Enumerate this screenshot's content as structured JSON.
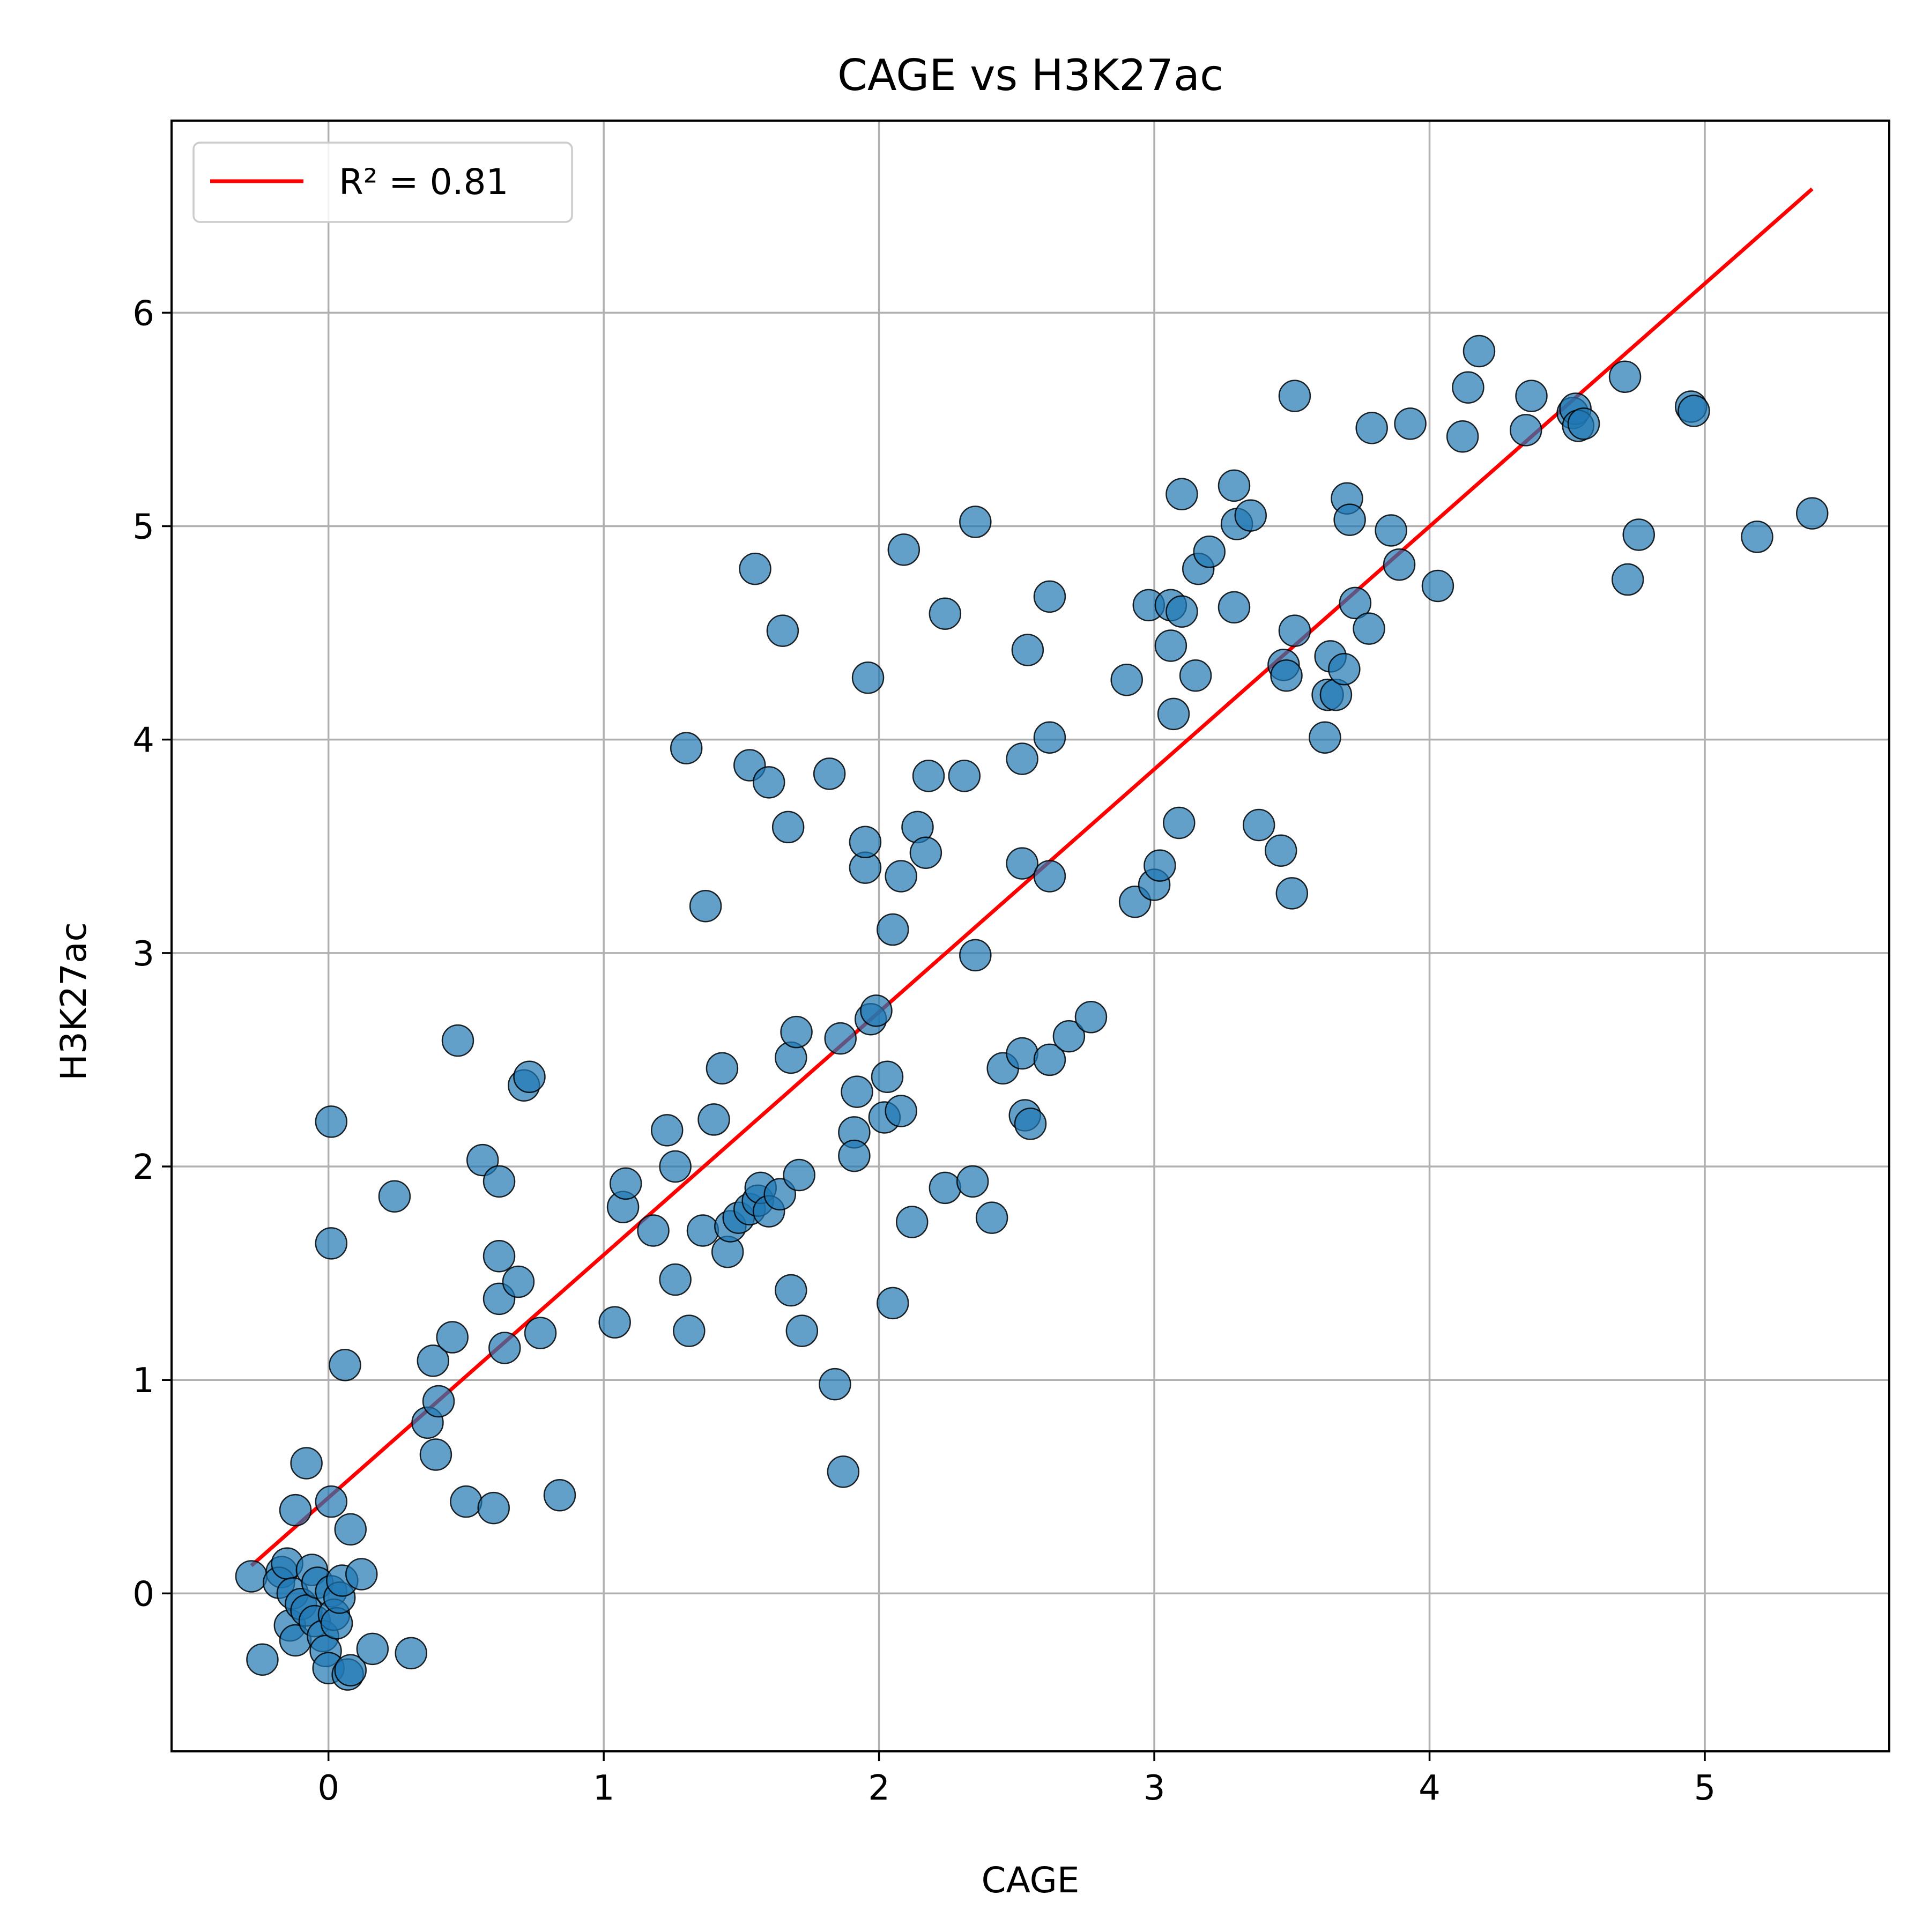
{
  "chart_data": {
    "type": "scatter",
    "title": "CAGE vs H3K27ac",
    "xlabel": "CAGE",
    "ylabel": "H3K27ac",
    "xlim": [
      -0.57,
      5.67
    ],
    "ylim": [
      -0.74,
      6.9
    ],
    "xticks": [
      0,
      1,
      2,
      3,
      4,
      5
    ],
    "yticks": [
      0,
      1,
      2,
      3,
      4,
      5,
      6
    ],
    "grid": true,
    "legend": {
      "placement": "top-left",
      "entries": [
        {
          "label": "R² = 0.81",
          "color": "#ff0000",
          "kind": "line"
        }
      ]
    },
    "fit_line": {
      "x": [
        -0.28,
        5.39
      ],
      "y": [
        0.13,
        6.58
      ],
      "color": "#ff0000"
    },
    "point_color": "#1f77b4",
    "point_edge_color": "#000000",
    "points": [
      [
        -0.28,
        0.08
      ],
      [
        -0.24,
        -0.31
      ],
      [
        -0.17,
        0.1
      ],
      [
        -0.18,
        0.05
      ],
      [
        -0.15,
        0.14
      ],
      [
        -0.14,
        -0.15
      ],
      [
        -0.13,
        0.0
      ],
      [
        -0.12,
        -0.22
      ],
      [
        -0.1,
        -0.05
      ],
      [
        -0.08,
        -0.08
      ],
      [
        -0.06,
        0.11
      ],
      [
        -0.05,
        -0.13
      ],
      [
        -0.04,
        0.05
      ],
      [
        -0.02,
        -0.2
      ],
      [
        -0.01,
        -0.27
      ],
      [
        0.0,
        -0.35
      ],
      [
        0.01,
        0.01
      ],
      [
        0.02,
        -0.1
      ],
      [
        0.03,
        -0.14
      ],
      [
        0.04,
        -0.02
      ],
      [
        0.05,
        0.06
      ],
      [
        0.07,
        -0.38
      ],
      [
        0.08,
        -0.36
      ],
      [
        0.12,
        0.09
      ],
      [
        0.16,
        -0.26
      ],
      [
        0.3,
        -0.28
      ],
      [
        -0.12,
        0.39
      ],
      [
        -0.08,
        0.61
      ],
      [
        0.01,
        0.43
      ],
      [
        0.08,
        0.3
      ],
      [
        0.06,
        1.07
      ],
      [
        0.01,
        1.64
      ],
      [
        0.01,
        2.21
      ],
      [
        0.24,
        1.86
      ],
      [
        0.36,
        0.8
      ],
      [
        0.38,
        1.09
      ],
      [
        0.4,
        0.9
      ],
      [
        0.39,
        0.65
      ],
      [
        0.45,
        1.2
      ],
      [
        0.47,
        2.59
      ],
      [
        0.5,
        0.43
      ],
      [
        0.56,
        2.03
      ],
      [
        0.6,
        0.4
      ],
      [
        0.62,
        1.93
      ],
      [
        0.62,
        1.38
      ],
      [
        0.62,
        1.58
      ],
      [
        0.64,
        1.15
      ],
      [
        0.69,
        1.46
      ],
      [
        0.71,
        2.38
      ],
      [
        0.73,
        2.42
      ],
      [
        0.77,
        1.22
      ],
      [
        0.84,
        0.46
      ],
      [
        1.04,
        1.27
      ],
      [
        1.07,
        1.81
      ],
      [
        1.08,
        1.92
      ],
      [
        1.18,
        1.7
      ],
      [
        1.23,
        2.17
      ],
      [
        1.26,
        2.0
      ],
      [
        1.26,
        1.47
      ],
      [
        1.3,
        3.96
      ],
      [
        1.31,
        1.23
      ],
      [
        1.36,
        1.7
      ],
      [
        1.37,
        3.22
      ],
      [
        1.4,
        2.22
      ],
      [
        1.43,
        2.46
      ],
      [
        1.45,
        1.6
      ],
      [
        1.46,
        1.72
      ],
      [
        1.49,
        1.76
      ],
      [
        1.53,
        1.8
      ],
      [
        1.53,
        3.88
      ],
      [
        1.55,
        4.8
      ],
      [
        1.56,
        1.84
      ],
      [
        1.57,
        1.9
      ],
      [
        1.6,
        1.79
      ],
      [
        1.6,
        3.8
      ],
      [
        1.64,
        1.87
      ],
      [
        1.65,
        4.51
      ],
      [
        1.67,
        3.59
      ],
      [
        1.68,
        2.51
      ],
      [
        1.68,
        1.42
      ],
      [
        1.7,
        2.63
      ],
      [
        1.71,
        1.96
      ],
      [
        1.72,
        1.23
      ],
      [
        1.82,
        3.84
      ],
      [
        1.84,
        0.98
      ],
      [
        1.86,
        2.6
      ],
      [
        1.87,
        0.57
      ],
      [
        1.91,
        2.16
      ],
      [
        1.91,
        2.05
      ],
      [
        1.92,
        2.35
      ],
      [
        1.95,
        3.4
      ],
      [
        1.95,
        3.52
      ],
      [
        1.96,
        4.29
      ],
      [
        1.97,
        2.69
      ],
      [
        1.99,
        2.73
      ],
      [
        2.02,
        2.23
      ],
      [
        2.03,
        2.42
      ],
      [
        2.05,
        1.36
      ],
      [
        2.05,
        3.11
      ],
      [
        2.08,
        2.26
      ],
      [
        2.08,
        3.36
      ],
      [
        2.09,
        4.89
      ],
      [
        2.12,
        1.74
      ],
      [
        2.14,
        3.59
      ],
      [
        2.17,
        3.47
      ],
      [
        2.18,
        3.83
      ],
      [
        2.24,
        1.9
      ],
      [
        2.24,
        4.59
      ],
      [
        2.31,
        3.83
      ],
      [
        2.34,
        1.93
      ],
      [
        2.35,
        5.02
      ],
      [
        2.35,
        2.99
      ],
      [
        2.41,
        1.76
      ],
      [
        2.45,
        2.46
      ],
      [
        2.52,
        3.91
      ],
      [
        2.52,
        2.53
      ],
      [
        2.52,
        3.42
      ],
      [
        2.53,
        2.24
      ],
      [
        2.54,
        4.42
      ],
      [
        2.55,
        2.2
      ],
      [
        2.62,
        2.5
      ],
      [
        2.62,
        4.01
      ],
      [
        2.62,
        3.36
      ],
      [
        2.62,
        4.67
      ],
      [
        2.69,
        2.61
      ],
      [
        2.77,
        2.7
      ],
      [
        2.9,
        4.28
      ],
      [
        2.93,
        3.24
      ],
      [
        2.98,
        4.63
      ],
      [
        3.0,
        3.32
      ],
      [
        3.02,
        3.41
      ],
      [
        3.06,
        4.44
      ],
      [
        3.06,
        4.63
      ],
      [
        3.07,
        4.12
      ],
      [
        3.09,
        3.61
      ],
      [
        3.1,
        5.15
      ],
      [
        3.1,
        4.6
      ],
      [
        3.15,
        4.3
      ],
      [
        3.16,
        4.8
      ],
      [
        3.2,
        4.88
      ],
      [
        3.29,
        5.19
      ],
      [
        3.29,
        4.62
      ],
      [
        3.3,
        5.01
      ],
      [
        3.35,
        5.05
      ],
      [
        3.38,
        3.6
      ],
      [
        3.46,
        3.48
      ],
      [
        3.47,
        4.35
      ],
      [
        3.48,
        4.3
      ],
      [
        3.5,
        3.28
      ],
      [
        3.51,
        4.51
      ],
      [
        3.51,
        5.61
      ],
      [
        3.62,
        4.01
      ],
      [
        3.63,
        4.21
      ],
      [
        3.64,
        4.39
      ],
      [
        3.66,
        4.21
      ],
      [
        3.69,
        4.33
      ],
      [
        3.7,
        5.13
      ],
      [
        3.71,
        5.03
      ],
      [
        3.73,
        4.64
      ],
      [
        3.78,
        4.52
      ],
      [
        3.79,
        5.46
      ],
      [
        3.86,
        4.98
      ],
      [
        3.89,
        4.82
      ],
      [
        3.93,
        5.48
      ],
      [
        4.03,
        4.72
      ],
      [
        4.12,
        5.42
      ],
      [
        4.14,
        5.65
      ],
      [
        4.18,
        5.82
      ],
      [
        4.35,
        5.45
      ],
      [
        4.37,
        5.61
      ],
      [
        4.52,
        5.53
      ],
      [
        4.53,
        5.55
      ],
      [
        4.54,
        5.47
      ],
      [
        4.56,
        5.48
      ],
      [
        4.71,
        5.7
      ],
      [
        4.72,
        4.75
      ],
      [
        4.76,
        4.96
      ],
      [
        4.95,
        5.56
      ],
      [
        4.96,
        5.54
      ],
      [
        5.19,
        4.95
      ],
      [
        5.39,
        5.06
      ]
    ]
  }
}
